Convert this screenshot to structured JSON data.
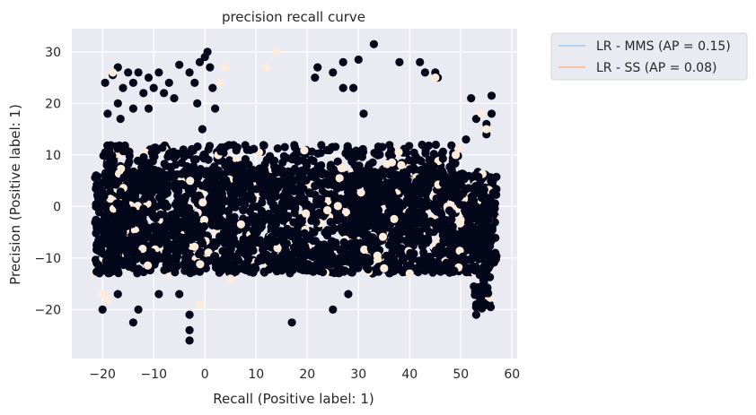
{
  "chart_data": {
    "type": "scatter",
    "title": "precision recall curve",
    "xlabel": "Recall (Positive label: 1)",
    "ylabel": "Precision (Positive label: 1)",
    "xlim": [
      -26,
      61
    ],
    "ylim": [
      -29.5,
      34.5
    ],
    "xticks": [
      -20,
      -10,
      0,
      10,
      20,
      30,
      40,
      50,
      60
    ],
    "yticks": [
      -20,
      -10,
      0,
      10,
      20,
      30
    ],
    "grid": true,
    "legend_position": "outside-top-right",
    "legend": [
      {
        "label": "LR - MMS (AP = 0.15)",
        "color": "#a1c9f4"
      },
      {
        "label": "LR - SS (AP = 0.08)",
        "color": "#ffb482"
      }
    ],
    "colors": {
      "point_dark": "#04061a",
      "point_light": "#fdebdb",
      "plot_background": "#eaeaf2",
      "grid": "#ffffff"
    },
    "points_dark": [
      [
        -19.5,
        24
      ],
      [
        -18,
        25.5
      ],
      [
        -17,
        27
      ],
      [
        -16,
        23
      ],
      [
        -15,
        26
      ],
      [
        -14,
        24
      ],
      [
        -13,
        26
      ],
      [
        -12,
        22
      ],
      [
        -11,
        25
      ],
      [
        -10,
        23
      ],
      [
        -9,
        26
      ],
      [
        -8,
        22
      ],
      [
        -7,
        24
      ],
      [
        -6,
        21
      ],
      [
        -5,
        27.5
      ],
      [
        -19,
        18
      ],
      [
        -17,
        20
      ],
      [
        -14,
        19
      ],
      [
        -11,
        19
      ],
      [
        -19.5,
        10.5
      ],
      [
        -16.5,
        17
      ],
      [
        -3,
        26
      ],
      [
        -2,
        24
      ],
      [
        -1,
        28
      ],
      [
        0,
        29
      ],
      [
        0.5,
        30
      ],
      [
        -1.5,
        20
      ],
      [
        -0.5,
        15
      ],
      [
        0,
        10
      ],
      [
        1,
        27
      ],
      [
        1.5,
        23
      ],
      [
        2,
        19
      ],
      [
        21.5,
        25
      ],
      [
        22,
        27
      ],
      [
        25,
        26
      ],
      [
        27,
        28
      ],
      [
        30,
        28.5
      ],
      [
        33,
        31.5
      ],
      [
        38,
        28
      ],
      [
        42,
        28
      ],
      [
        43,
        26
      ],
      [
        45,
        26
      ],
      [
        45.5,
        25
      ],
      [
        27,
        23
      ],
      [
        29,
        23
      ],
      [
        31,
        18
      ],
      [
        52,
        21
      ],
      [
        53,
        17
      ],
      [
        55,
        16
      ],
      [
        56,
        21.5
      ],
      [
        51,
        13
      ],
      [
        55,
        14
      ],
      [
        56,
        18
      ],
      [
        -20,
        -20
      ],
      [
        -17,
        -17
      ],
      [
        -14,
        -22.5
      ],
      [
        -13,
        -20
      ],
      [
        -9,
        -17
      ],
      [
        -5,
        -17
      ],
      [
        -3,
        -21
      ],
      [
        -3,
        -24
      ],
      [
        -3,
        -26
      ],
      [
        17,
        -22.5
      ],
      [
        25,
        -20
      ],
      [
        28,
        -17
      ],
      [
        53,
        -21
      ],
      [
        53,
        -19
      ]
    ],
    "points_light": [
      [
        12,
        27
      ],
      [
        14,
        30
      ],
      [
        4,
        27
      ],
      [
        3,
        24
      ],
      [
        -18,
        26
      ],
      [
        -20,
        -17
      ],
      [
        -19,
        -18
      ],
      [
        45,
        25
      ],
      [
        49,
        10
      ],
      [
        54,
        18
      ],
      [
        55,
        15
      ],
      [
        -1,
        -19
      ],
      [
        5,
        -14
      ],
      [
        35,
        -12
      ],
      [
        40,
        -13
      ]
    ],
    "dense_regions": [
      {
        "x": [
          -21.5,
          57
        ],
        "y": [
          -13,
          7
        ],
        "n": 2600
      },
      {
        "x": [
          -20,
          50
        ],
        "y": [
          4,
          12
        ],
        "n": 450
      },
      {
        "x": [
          52.5,
          56
        ],
        "y": [
          -20,
          2
        ],
        "n": 120
      }
    ]
  }
}
